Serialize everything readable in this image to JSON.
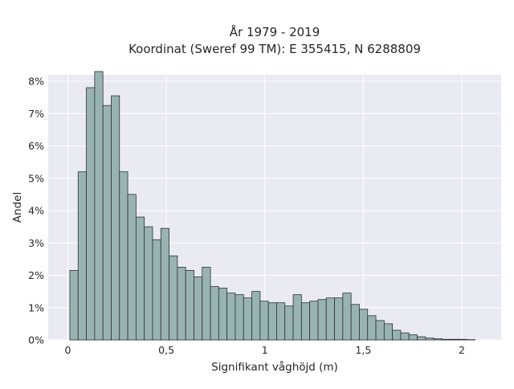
{
  "chart_data": {
    "type": "bar",
    "title_lines": [
      "År 1979 - 2019",
      "Koordinat (Sweref 99 TM): E 355415, N 6288809"
    ],
    "xlabel": "Signifikant våghöjd (m)",
    "ylabel": "Andel",
    "xlim": [
      -0.1,
      2.2
    ],
    "ylim": [
      0,
      8.2
    ],
    "x_ticks": [
      {
        "value": 0,
        "label": "0"
      },
      {
        "value": 0.5,
        "label": "0,5"
      },
      {
        "value": 1,
        "label": "1"
      },
      {
        "value": 1.5,
        "label": "1,5"
      },
      {
        "value": 2,
        "label": "2"
      }
    ],
    "y_ticks": [
      {
        "value": 0,
        "label": "0%"
      },
      {
        "value": 1,
        "label": "1%"
      },
      {
        "value": 2,
        "label": "2%"
      },
      {
        "value": 3,
        "label": "3%"
      },
      {
        "value": 4,
        "label": "4%"
      },
      {
        "value": 5,
        "label": "5%"
      },
      {
        "value": 6,
        "label": "6%"
      },
      {
        "value": 7,
        "label": "7%"
      },
      {
        "value": 8,
        "label": "8%"
      }
    ],
    "bin_start": 0.01,
    "bin_width": 0.042,
    "values": [
      2.15,
      5.2,
      7.8,
      8.3,
      7.25,
      7.55,
      5.2,
      4.5,
      3.8,
      3.5,
      3.1,
      3.45,
      2.6,
      2.25,
      2.15,
      1.95,
      2.25,
      1.65,
      1.6,
      1.45,
      1.4,
      1.3,
      1.5,
      1.2,
      1.15,
      1.15,
      1.05,
      1.4,
      1.15,
      1.2,
      1.25,
      1.3,
      1.3,
      1.45,
      1.1,
      0.95,
      0.75,
      0.6,
      0.5,
      0.3,
      0.22,
      0.16,
      0.1,
      0.06,
      0.04,
      0.02,
      0.02,
      0.02,
      0.01
    ],
    "colors": {
      "bar_fill": "#98b4b2",
      "bar_edge": "#2f2f2f",
      "plot_bg": "#eaeaf2",
      "grid": "#ffffff"
    },
    "grid": true
  }
}
